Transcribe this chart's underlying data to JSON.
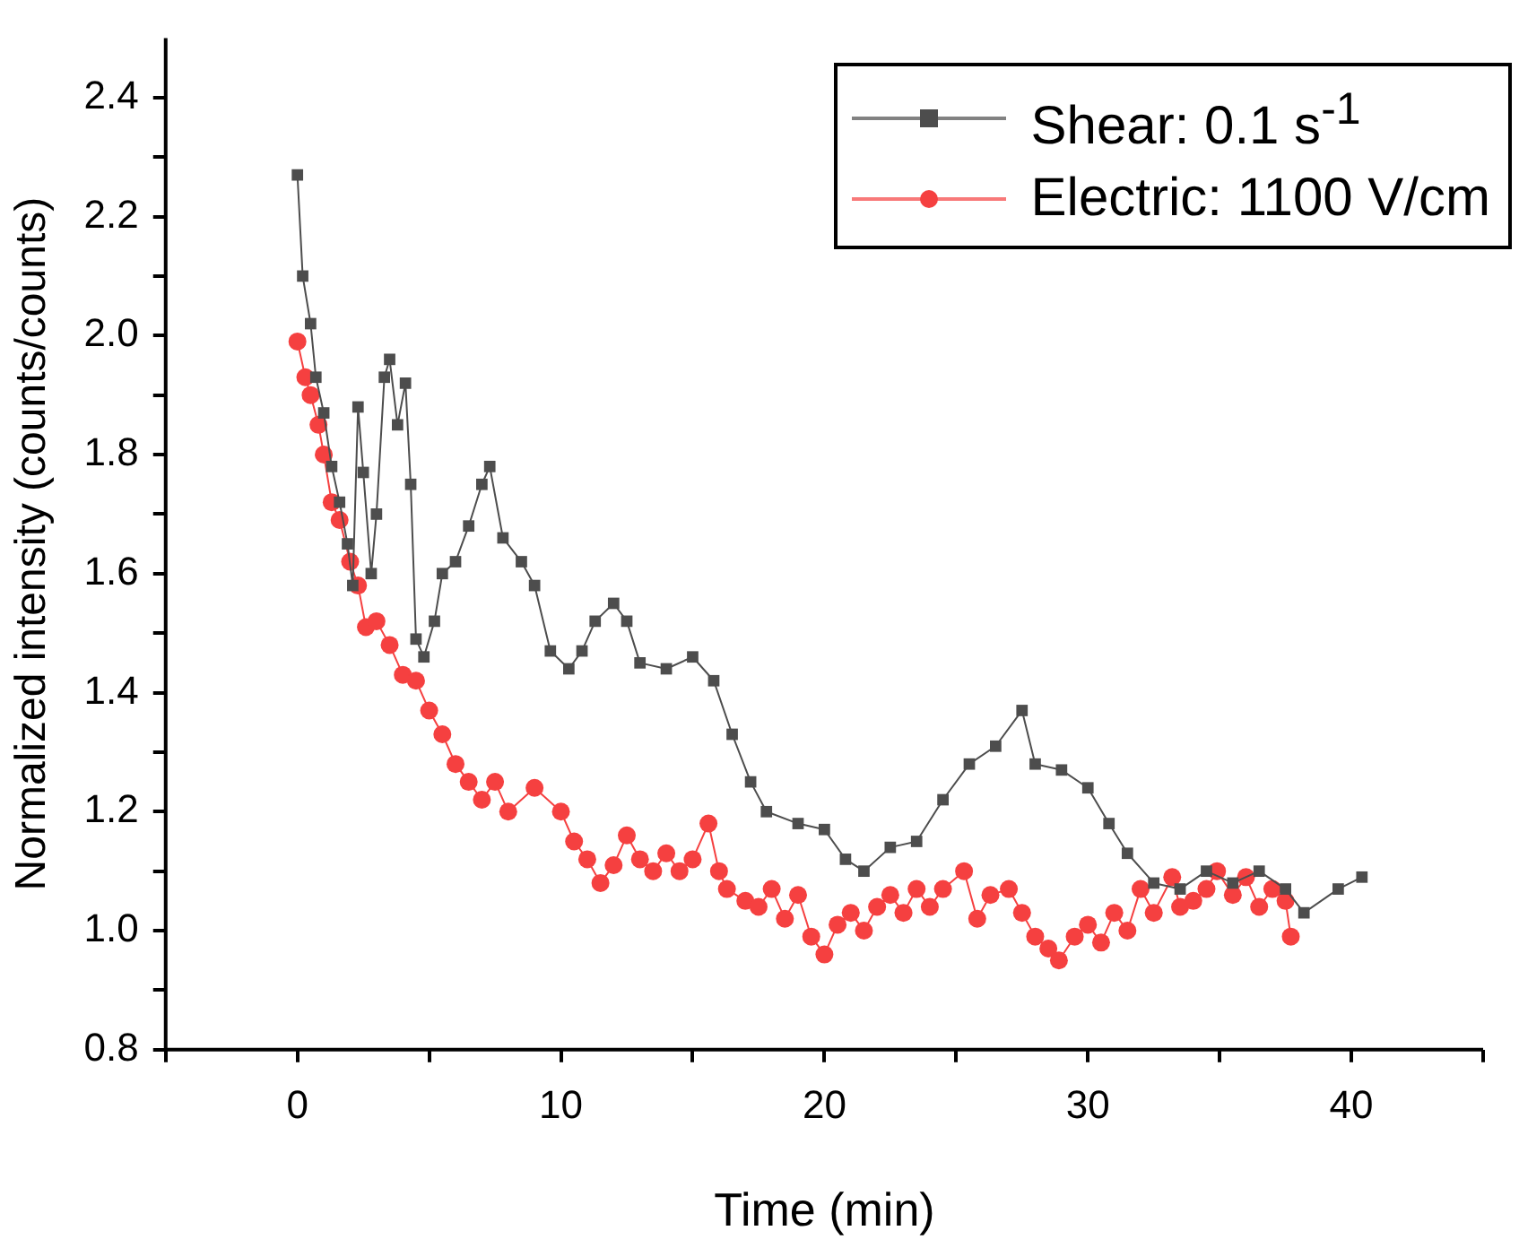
{
  "chart_data": {
    "type": "line",
    "xlabel": "Time (min)",
    "ylabel": "Normalized intensity (counts/counts)",
    "xlim": [
      -5,
      45
    ],
    "xticks": [
      {
        "value": -5,
        "label": null
      },
      0,
      {
        "value": 5,
        "label": null
      },
      10,
      {
        "value": 15,
        "label": null
      },
      20,
      {
        "value": 25,
        "label": null
      },
      30,
      {
        "value": 35,
        "label": null
      },
      40,
      {
        "value": 45,
        "label": null
      }
    ],
    "ylim": [
      0.8,
      2.5
    ],
    "yticks": [
      {
        "value": 0.8,
        "label": "0.8"
      },
      {
        "value": 0.9,
        "label": null
      },
      {
        "value": 1.0,
        "label": "1.0"
      },
      {
        "value": 1.1,
        "label": null
      },
      {
        "value": 1.2,
        "label": "1.2"
      },
      {
        "value": 1.3,
        "label": null
      },
      {
        "value": 1.4,
        "label": "1.4"
      },
      {
        "value": 1.5,
        "label": null
      },
      {
        "value": 1.6,
        "label": "1.6"
      },
      {
        "value": 1.7,
        "label": null
      },
      {
        "value": 1.8,
        "label": "1.8"
      },
      {
        "value": 1.9,
        "label": null
      },
      {
        "value": 2.0,
        "label": "2.0"
      },
      {
        "value": 2.1,
        "label": null
      },
      {
        "value": 2.2,
        "label": "2.2"
      },
      {
        "value": 2.3,
        "label": null
      },
      {
        "value": 2.4,
        "label": "2.4"
      }
    ],
    "grid": false,
    "legend": "top right",
    "line_style": "solid",
    "series": [
      {
        "name": "Shear: 0.1 s$^{-1}$",
        "color": "#4d4d4d",
        "marker": "square",
        "x": [
          0,
          0.2,
          0.5,
          0.7,
          1.0,
          1.3,
          1.6,
          1.9,
          2.1,
          2.3,
          2.5,
          2.8,
          3.0,
          3.3,
          3.5,
          3.8,
          4.1,
          4.3,
          4.5,
          4.8,
          5.2,
          5.5,
          6.0,
          6.5,
          7.0,
          7.3,
          7.8,
          8.5,
          9.0,
          9.6,
          10.3,
          10.8,
          11.3,
          12.0,
          12.5,
          13.0,
          14,
          15,
          15.8,
          16.5,
          17.2,
          17.8,
          19,
          20,
          20.8,
          21.5,
          22.5,
          23.5,
          24.5,
          25.5,
          26.5,
          27.5,
          28,
          29,
          30,
          30.8,
          31.5,
          32.5,
          33.5,
          34.5,
          35.5,
          36.5,
          37.5,
          38.2,
          39.5,
          40.4
        ],
        "values": [
          2.27,
          2.1,
          2.02,
          1.93,
          1.87,
          1.78,
          1.72,
          1.65,
          1.58,
          1.88,
          1.77,
          1.6,
          1.7,
          1.93,
          1.96,
          1.85,
          1.92,
          1.75,
          1.49,
          1.46,
          1.52,
          1.6,
          1.62,
          1.68,
          1.75,
          1.78,
          1.66,
          1.62,
          1.58,
          1.47,
          1.44,
          1.47,
          1.52,
          1.55,
          1.52,
          1.45,
          1.44,
          1.46,
          1.42,
          1.33,
          1.25,
          1.2,
          1.18,
          1.17,
          1.12,
          1.1,
          1.14,
          1.15,
          1.22,
          1.28,
          1.31,
          1.37,
          1.28,
          1.27,
          1.24,
          1.18,
          1.13,
          1.08,
          1.07,
          1.1,
          1.08,
          1.1,
          1.07,
          1.03,
          1.07,
          1.09
        ]
      },
      {
        "name": "Electric: 1100 V/cm",
        "color": "#f54040",
        "marker": "circle",
        "x": [
          0,
          0.3,
          0.5,
          0.8,
          1.0,
          1.3,
          1.6,
          2.0,
          2.3,
          2.6,
          3.0,
          3.5,
          4,
          4.5,
          5,
          5.5,
          6,
          6.5,
          7,
          7.5,
          8,
          9,
          10,
          10.5,
          11,
          11.5,
          12,
          12.5,
          13,
          13.5,
          14,
          14.5,
          15,
          15.6,
          16,
          16.3,
          17,
          17.5,
          18,
          18.5,
          19,
          19.5,
          20,
          20.5,
          21,
          21.5,
          22,
          22.5,
          23,
          23.5,
          24,
          24.5,
          25.3,
          25.8,
          26.3,
          27,
          27.5,
          28,
          28.5,
          28.9,
          29.5,
          30,
          30.5,
          31,
          31.5,
          32,
          32.5,
          33.2,
          33.5,
          34,
          34.5,
          34.9,
          35.5,
          36,
          36.5,
          37,
          37.5,
          37.7
        ],
        "values": [
          1.99,
          1.93,
          1.9,
          1.85,
          1.8,
          1.72,
          1.69,
          1.62,
          1.58,
          1.51,
          1.52,
          1.48,
          1.43,
          1.42,
          1.37,
          1.33,
          1.28,
          1.25,
          1.22,
          1.25,
          1.2,
          1.24,
          1.2,
          1.15,
          1.12,
          1.08,
          1.11,
          1.16,
          1.12,
          1.1,
          1.13,
          1.1,
          1.12,
          1.18,
          1.1,
          1.07,
          1.05,
          1.04,
          1.07,
          1.02,
          1.06,
          0.99,
          0.96,
          1.01,
          1.03,
          1.0,
          1.04,
          1.06,
          1.03,
          1.07,
          1.04,
          1.07,
          1.1,
          1.02,
          1.06,
          1.07,
          1.03,
          0.99,
          0.97,
          0.95,
          0.99,
          1.01,
          0.98,
          1.03,
          1.0,
          1.07,
          1.03,
          1.09,
          1.04,
          1.05,
          1.07,
          1.1,
          1.06,
          1.09,
          1.04,
          1.07,
          1.05,
          0.99
        ]
      }
    ]
  }
}
